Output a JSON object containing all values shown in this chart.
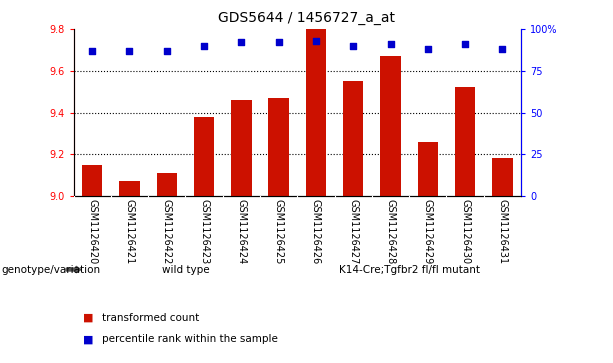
{
  "title": "GDS5644 / 1456727_a_at",
  "samples": [
    "GSM1126420",
    "GSM1126421",
    "GSM1126422",
    "GSM1126423",
    "GSM1126424",
    "GSM1126425",
    "GSM1126426",
    "GSM1126427",
    "GSM1126428",
    "GSM1126429",
    "GSM1126430",
    "GSM1126431"
  ],
  "bar_values": [
    9.15,
    9.07,
    9.11,
    9.38,
    9.46,
    9.47,
    9.8,
    9.55,
    9.67,
    9.26,
    9.52,
    9.18
  ],
  "percentile_values": [
    87,
    87,
    87,
    90,
    92,
    92,
    93,
    90,
    91,
    88,
    91,
    88
  ],
  "bar_color": "#cc1100",
  "dot_color": "#0000cc",
  "ymin": 9.0,
  "ymax": 9.8,
  "yticks": [
    9.0,
    9.2,
    9.4,
    9.6,
    9.8
  ],
  "right_yticks": [
    0,
    25,
    50,
    75,
    100
  ],
  "groups": [
    {
      "label": "wild type",
      "start": 0,
      "end": 5,
      "color": "#90EE90"
    },
    {
      "label": "K14-Cre;Tgfbr2 fl/fl mutant",
      "start": 6,
      "end": 11,
      "color": "#32CD32"
    }
  ],
  "group_row_label": "genotype/variation",
  "legend_bar_label": "transformed count",
  "legend_dot_label": "percentile rank within the sample",
  "plot_bg": "#ffffff",
  "sample_bg": "#cccccc",
  "title_fontsize": 10,
  "tick_fontsize": 7,
  "label_fontsize": 7.5
}
